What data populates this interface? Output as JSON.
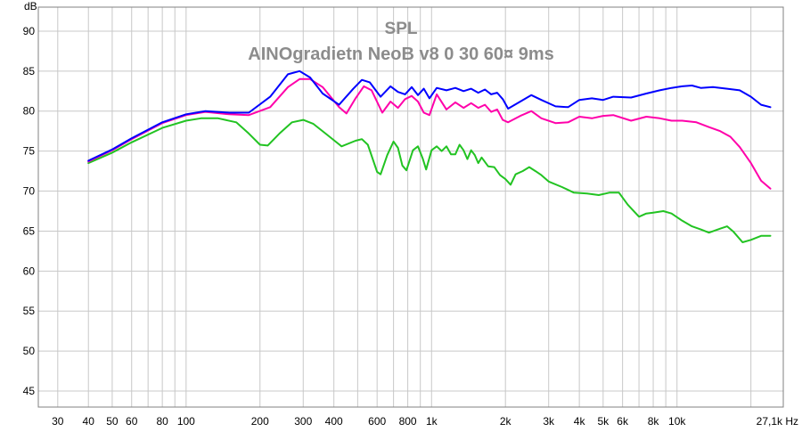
{
  "chart_data": {
    "type": "line",
    "title": "SPL",
    "subtitle": "AINOgradietn NeoB v8 0 30 60¤ 9ms",
    "ylabel": "dB",
    "xunit": "Hz",
    "xscale": "log",
    "xlim": [
      25,
      27100
    ],
    "ylim": [
      43,
      93
    ],
    "grid": true,
    "x_ticks": [
      {
        "value": 30,
        "label": "30"
      },
      {
        "value": 40,
        "label": "40"
      },
      {
        "value": 50,
        "label": "50"
      },
      {
        "value": 60,
        "label": "60"
      },
      {
        "value": 80,
        "label": "80"
      },
      {
        "value": 100,
        "label": "100"
      },
      {
        "value": 200,
        "label": "200"
      },
      {
        "value": 300,
        "label": "300"
      },
      {
        "value": 400,
        "label": "400"
      },
      {
        "value": 600,
        "label": "600"
      },
      {
        "value": 800,
        "label": "800"
      },
      {
        "value": 1000,
        "label": "1k"
      },
      {
        "value": 2000,
        "label": "2k"
      },
      {
        "value": 3000,
        "label": "3k"
      },
      {
        "value": 4000,
        "label": "4k"
      },
      {
        "value": 5000,
        "label": "5k"
      },
      {
        "value": 6000,
        "label": "6k"
      },
      {
        "value": 8000,
        "label": "8k"
      },
      {
        "value": 10000,
        "label": "10k"
      },
      {
        "value": 27100,
        "label": "27,1k Hz"
      }
    ],
    "y_ticks": [
      45,
      50,
      55,
      60,
      65,
      70,
      75,
      80,
      85,
      90
    ],
    "series": [
      {
        "color": "#0000ff",
        "points": [
          [
            40,
            73.8
          ],
          [
            50,
            75.2
          ],
          [
            60,
            76.6
          ],
          [
            80,
            78.6
          ],
          [
            100,
            79.6
          ],
          [
            120,
            80.0
          ],
          [
            150,
            79.8
          ],
          [
            180,
            79.8
          ],
          [
            220,
            81.8
          ],
          [
            260,
            84.6
          ],
          [
            290,
            85.0
          ],
          [
            320,
            84.2
          ],
          [
            360,
            82.2
          ],
          [
            420,
            80.8
          ],
          [
            480,
            82.8
          ],
          [
            520,
            83.9
          ],
          [
            560,
            83.6
          ],
          [
            620,
            81.8
          ],
          [
            680,
            83.1
          ],
          [
            730,
            82.4
          ],
          [
            780,
            82.1
          ],
          [
            830,
            83.0
          ],
          [
            880,
            82.0
          ],
          [
            930,
            82.8
          ],
          [
            980,
            81.6
          ],
          [
            1050,
            82.9
          ],
          [
            1150,
            82.6
          ],
          [
            1250,
            82.9
          ],
          [
            1350,
            82.5
          ],
          [
            1450,
            82.8
          ],
          [
            1550,
            82.3
          ],
          [
            1650,
            82.7
          ],
          [
            1750,
            82.1
          ],
          [
            1850,
            82.3
          ],
          [
            1950,
            81.5
          ],
          [
            2050,
            80.3
          ],
          [
            2300,
            81.2
          ],
          [
            2550,
            82.0
          ],
          [
            2800,
            81.4
          ],
          [
            3200,
            80.6
          ],
          [
            3600,
            80.5
          ],
          [
            4000,
            81.4
          ],
          [
            4500,
            81.6
          ],
          [
            5000,
            81.4
          ],
          [
            5500,
            81.8
          ],
          [
            6500,
            81.7
          ],
          [
            7500,
            82.2
          ],
          [
            8500,
            82.6
          ],
          [
            9500,
            82.9
          ],
          [
            10500,
            83.1
          ],
          [
            11500,
            83.2
          ],
          [
            12500,
            82.9
          ],
          [
            14000,
            83.0
          ],
          [
            16000,
            82.8
          ],
          [
            18000,
            82.6
          ],
          [
            20000,
            81.8
          ],
          [
            22000,
            80.8
          ],
          [
            24000,
            80.5
          ]
        ]
      },
      {
        "color": "#ff00aa",
        "points": [
          [
            40,
            73.7
          ],
          [
            50,
            75.1
          ],
          [
            60,
            76.5
          ],
          [
            80,
            78.5
          ],
          [
            100,
            79.5
          ],
          [
            120,
            79.9
          ],
          [
            150,
            79.6
          ],
          [
            180,
            79.5
          ],
          [
            220,
            80.5
          ],
          [
            260,
            83.0
          ],
          [
            290,
            84.0
          ],
          [
            320,
            84.0
          ],
          [
            360,
            83.0
          ],
          [
            420,
            80.5
          ],
          [
            450,
            79.7
          ],
          [
            490,
            81.6
          ],
          [
            530,
            83.1
          ],
          [
            570,
            82.6
          ],
          [
            630,
            79.8
          ],
          [
            680,
            81.2
          ],
          [
            730,
            80.4
          ],
          [
            780,
            81.5
          ],
          [
            830,
            81.9
          ],
          [
            880,
            81.2
          ],
          [
            930,
            79.8
          ],
          [
            980,
            79.5
          ],
          [
            1050,
            82.1
          ],
          [
            1150,
            80.2
          ],
          [
            1250,
            81.1
          ],
          [
            1350,
            80.4
          ],
          [
            1450,
            81.0
          ],
          [
            1550,
            80.4
          ],
          [
            1650,
            80.8
          ],
          [
            1750,
            79.9
          ],
          [
            1850,
            80.2
          ],
          [
            1950,
            78.9
          ],
          [
            2050,
            78.6
          ],
          [
            2300,
            79.4
          ],
          [
            2550,
            80.0
          ],
          [
            2800,
            79.1
          ],
          [
            3200,
            78.5
          ],
          [
            3600,
            78.6
          ],
          [
            4000,
            79.3
          ],
          [
            4500,
            79.1
          ],
          [
            5000,
            79.4
          ],
          [
            5500,
            79.5
          ],
          [
            6500,
            78.8
          ],
          [
            7500,
            79.3
          ],
          [
            8500,
            79.1
          ],
          [
            9500,
            78.8
          ],
          [
            10500,
            78.8
          ],
          [
            12000,
            78.6
          ],
          [
            13500,
            78.0
          ],
          [
            15000,
            77.5
          ],
          [
            16500,
            76.8
          ],
          [
            18000,
            75.5
          ],
          [
            20000,
            73.5
          ],
          [
            22000,
            71.3
          ],
          [
            24000,
            70.3
          ]
        ]
      },
      {
        "color": "#22c322",
        "points": [
          [
            40,
            73.5
          ],
          [
            50,
            74.8
          ],
          [
            60,
            76.1
          ],
          [
            80,
            77.9
          ],
          [
            100,
            78.8
          ],
          [
            115,
            79.1
          ],
          [
            135,
            79.1
          ],
          [
            160,
            78.6
          ],
          [
            180,
            77.2
          ],
          [
            200,
            75.8
          ],
          [
            215,
            75.7
          ],
          [
            240,
            77.2
          ],
          [
            270,
            78.6
          ],
          [
            300,
            78.9
          ],
          [
            330,
            78.4
          ],
          [
            370,
            77.2
          ],
          [
            430,
            75.6
          ],
          [
            490,
            76.3
          ],
          [
            520,
            76.5
          ],
          [
            550,
            75.8
          ],
          [
            600,
            72.4
          ],
          [
            620,
            72.1
          ],
          [
            660,
            74.5
          ],
          [
            700,
            76.2
          ],
          [
            730,
            75.4
          ],
          [
            760,
            73.2
          ],
          [
            790,
            72.6
          ],
          [
            840,
            75.1
          ],
          [
            880,
            75.6
          ],
          [
            920,
            74.1
          ],
          [
            950,
            72.7
          ],
          [
            1000,
            75.1
          ],
          [
            1050,
            75.6
          ],
          [
            1100,
            75.0
          ],
          [
            1150,
            75.6
          ],
          [
            1200,
            74.6
          ],
          [
            1250,
            74.6
          ],
          [
            1300,
            75.8
          ],
          [
            1350,
            75.1
          ],
          [
            1400,
            74.0
          ],
          [
            1450,
            75.1
          ],
          [
            1500,
            74.5
          ],
          [
            1550,
            73.5
          ],
          [
            1600,
            74.2
          ],
          [
            1700,
            73.1
          ],
          [
            1800,
            73.0
          ],
          [
            1900,
            72.0
          ],
          [
            2000,
            71.5
          ],
          [
            2100,
            70.8
          ],
          [
            2200,
            72.1
          ],
          [
            2350,
            72.5
          ],
          [
            2500,
            73.0
          ],
          [
            2650,
            72.5
          ],
          [
            2800,
            72.0
          ],
          [
            3000,
            71.2
          ],
          [
            3400,
            70.5
          ],
          [
            3800,
            69.8
          ],
          [
            4300,
            69.7
          ],
          [
            4800,
            69.5
          ],
          [
            5300,
            69.8
          ],
          [
            5800,
            69.8
          ],
          [
            6300,
            68.3
          ],
          [
            7000,
            66.8
          ],
          [
            7500,
            67.2
          ],
          [
            8000,
            67.3
          ],
          [
            8800,
            67.5
          ],
          [
            9500,
            67.2
          ],
          [
            10500,
            66.3
          ],
          [
            11500,
            65.6
          ],
          [
            12500,
            65.2
          ],
          [
            13500,
            64.8
          ],
          [
            15000,
            65.3
          ],
          [
            16000,
            65.6
          ],
          [
            17000,
            64.9
          ],
          [
            18500,
            63.6
          ],
          [
            20000,
            63.9
          ],
          [
            22000,
            64.4
          ],
          [
            24000,
            64.4
          ]
        ]
      }
    ]
  }
}
